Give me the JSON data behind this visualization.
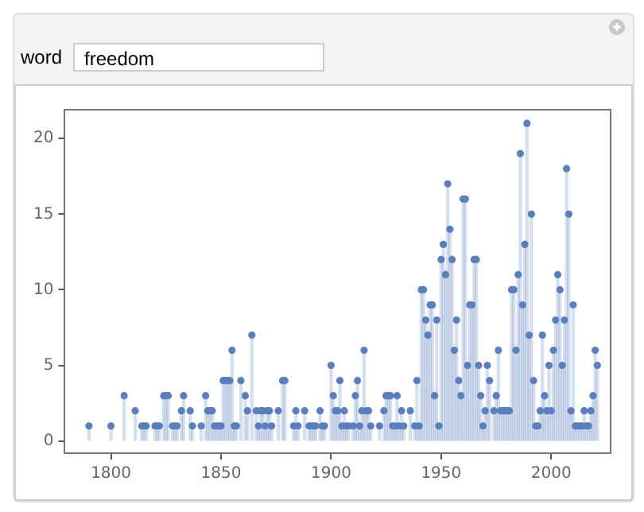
{
  "chart_data": {
    "type": "lollipop",
    "color": "#5b7fbd",
    "marker": "circle",
    "grid": false,
    "legend": false,
    "annotations": [
      "word",
      "freedom"
    ],
    "xlim": [
      1779,
      2027
    ],
    "ylim": [
      -0.8,
      21.9
    ],
    "xticks": [
      1800,
      1850,
      1900,
      1950,
      2000
    ],
    "yticks": [
      0,
      5,
      10,
      15,
      20
    ],
    "x": [
      1790,
      1800,
      1806,
      1811,
      1814,
      1815,
      1816,
      1820,
      1821,
      1822,
      1824,
      1825,
      1826,
      1828,
      1829,
      1830,
      1832,
      1833,
      1836,
      1837,
      1841,
      1843,
      1844,
      1845,
      1846,
      1847,
      1848,
      1849,
      1850,
      1851,
      1852,
      1853,
      1854,
      1855,
      1856,
      1857,
      1859,
      1861,
      1862,
      1864,
      1866,
      1867,
      1868,
      1869,
      1870,
      1871,
      1872,
      1873,
      1876,
      1878,
      1879,
      1883,
      1884,
      1885,
      1888,
      1890,
      1891,
      1892,
      1893,
      1895,
      1896,
      1897,
      1900,
      1901,
      1902,
      1903,
      1904,
      1905,
      1906,
      1907,
      1908,
      1910,
      1911,
      1912,
      1913,
      1914,
      1915,
      1916,
      1917,
      1918,
      1922,
      1924,
      1925,
      1926,
      1927,
      1928,
      1929,
      1930,
      1931,
      1932,
      1933,
      1936,
      1938,
      1939,
      1940,
      1941,
      1942,
      1943,
      1944,
      1945,
      1946,
      1947,
      1948,
      1949,
      1950,
      1951,
      1952,
      1953,
      1954,
      1955,
      1956,
      1957,
      1958,
      1959,
      1960,
      1961,
      1962,
      1963,
      1964,
      1965,
      1966,
      1967,
      1968,
      1969,
      1970,
      1971,
      1972,
      1974,
      1975,
      1976,
      1977,
      1978,
      1979,
      1980,
      1981,
      1982,
      1983,
      1984,
      1985,
      1986,
      1987,
      1988,
      1989,
      1990,
      1991,
      1992,
      1993,
      1994,
      1995,
      1996,
      1997,
      1998,
      1999,
      2000,
      2001,
      2002,
      2003,
      2004,
      2005,
      2006,
      2007,
      2008,
      2009,
      2010,
      2011,
      2012,
      2013,
      2014,
      2015,
      2016,
      2017,
      2018,
      2019,
      2020,
      2021
    ],
    "values": [
      1,
      1,
      3,
      2,
      1,
      1,
      1,
      1,
      1,
      1,
      3,
      3,
      3,
      1,
      1,
      1,
      2,
      3,
      2,
      1,
      1,
      3,
      2,
      2,
      2,
      1,
      1,
      1,
      1,
      4,
      4,
      4,
      4,
      6,
      1,
      1,
      4,
      3,
      2,
      7,
      2,
      1,
      2,
      2,
      1,
      2,
      2,
      1,
      2,
      4,
      4,
      1,
      2,
      1,
      2,
      1,
      1,
      1,
      1,
      2,
      1,
      1,
      5,
      3,
      2,
      2,
      4,
      1,
      2,
      1,
      1,
      1,
      3,
      4,
      1,
      2,
      6,
      2,
      2,
      1,
      1,
      2,
      3,
      3,
      3,
      1,
      1,
      3,
      1,
      2,
      1,
      2,
      1,
      4,
      1,
      10,
      10,
      8,
      7,
      9,
      9,
      3,
      8,
      1,
      12,
      13,
      11,
      17,
      14,
      12,
      6,
      8,
      4,
      3,
      16,
      16,
      5,
      9,
      9,
      12,
      12,
      5,
      3,
      1,
      2,
      5,
      4,
      2,
      3,
      6,
      2,
      2,
      2,
      2,
      2,
      10,
      10,
      6,
      11,
      19,
      9,
      13,
      21,
      7,
      15,
      4,
      1,
      1,
      2,
      7,
      3,
      2,
      5,
      2,
      6,
      8,
      11,
      10,
      5,
      8,
      18,
      15,
      2,
      9,
      1,
      1,
      1,
      1,
      2,
      1,
      1,
      2,
      3,
      6,
      5
    ]
  }
}
